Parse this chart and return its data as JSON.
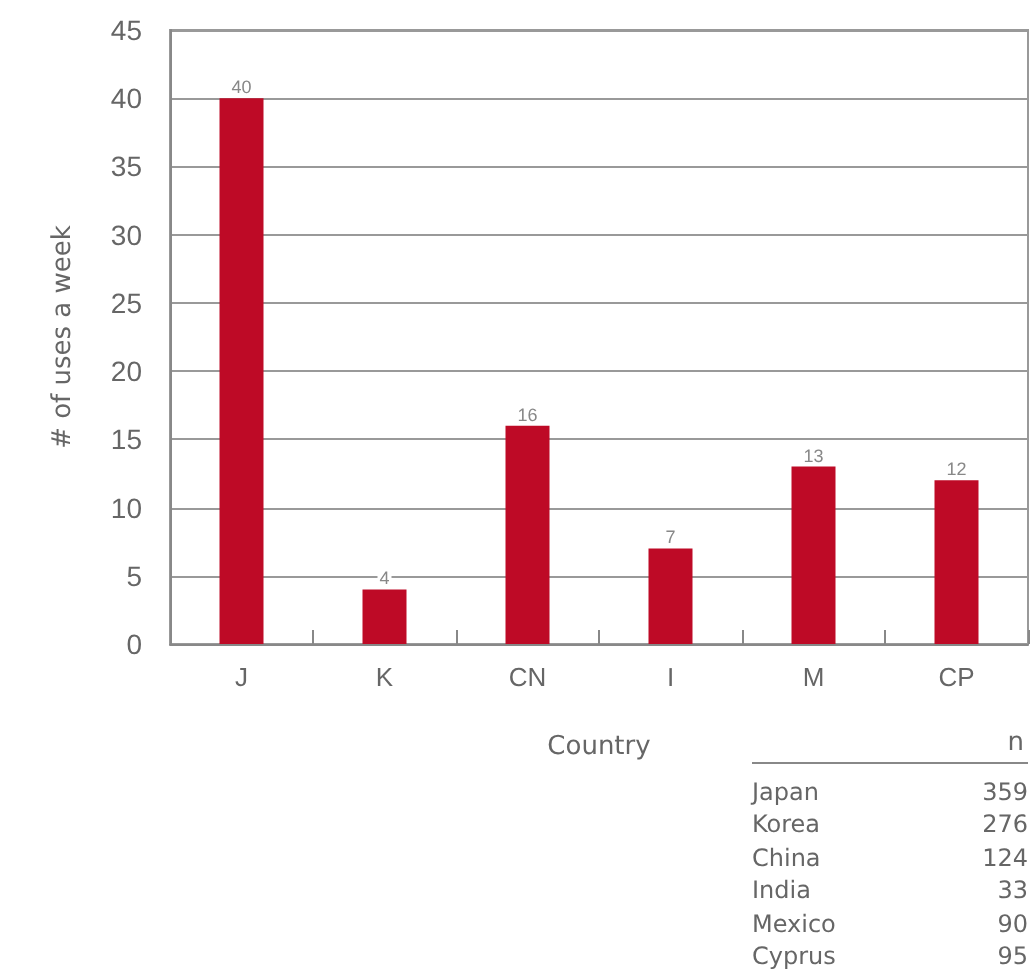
{
  "chart_data": {
    "type": "bar",
    "xlabel": "Country",
    "ylabel": "# of uses a week",
    "categories": [
      "J",
      "K",
      "CN",
      "I",
      "M",
      "CP"
    ],
    "values": [
      40,
      4,
      16,
      7,
      13,
      12
    ],
    "color": "#be0a26",
    "ylim": [
      0,
      45
    ],
    "yticks": [
      0,
      5,
      10,
      15,
      20,
      25,
      30,
      35,
      40,
      45
    ],
    "grid": "y",
    "data_labels": true,
    "annotations": [
      "n",
      "Japan",
      "359",
      "Korea",
      "276",
      "China",
      "124",
      "India",
      "33",
      "Mexico",
      "90",
      "Cyprus",
      "95"
    ]
  }
}
